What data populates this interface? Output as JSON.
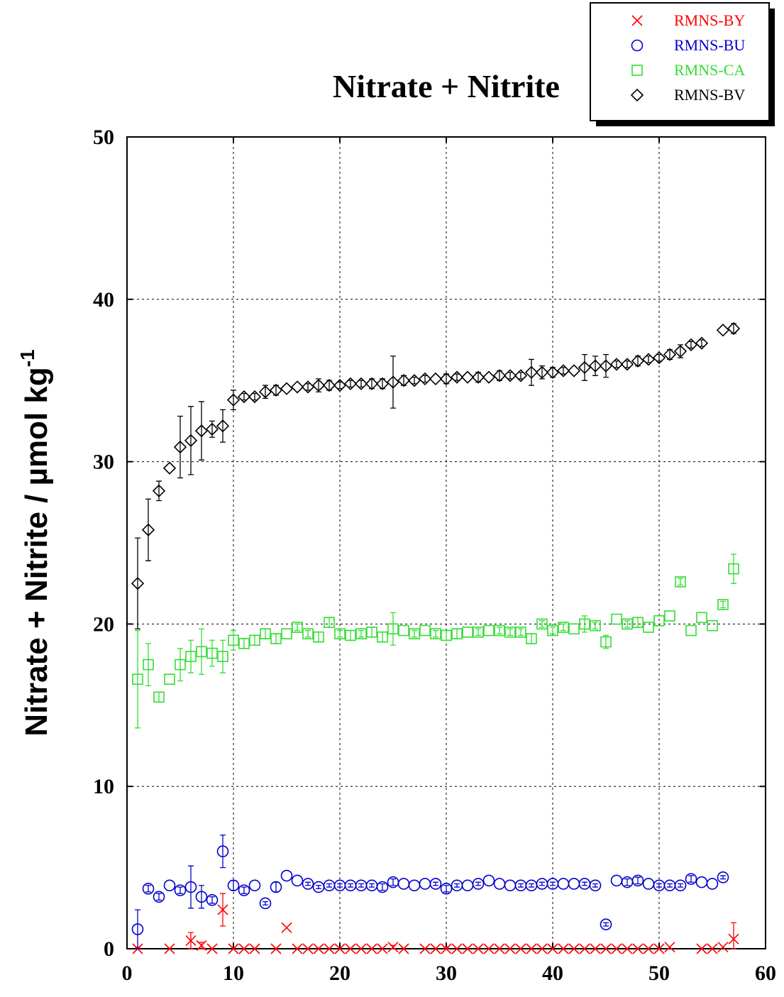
{
  "chart_data": {
    "type": "scatter",
    "title": "Nitrate + Nitrite",
    "xlabel": "",
    "ylabel": "Nitrate + Nitrite / µmol kg",
    "ylabel_superscript": "-1",
    "xlim": [
      0,
      60
    ],
    "ylim": [
      0,
      50
    ],
    "xticks": [
      "0",
      "10",
      "20",
      "30",
      "40",
      "50",
      "60"
    ],
    "yticks": [
      "0",
      "10",
      "20",
      "30",
      "40",
      "50"
    ],
    "grid": true,
    "legend_position": "top-right",
    "series": [
      {
        "name": "RMNS-BY",
        "marker": "cross",
        "color": "#ff0000",
        "points": [
          [
            1,
            0,
            0.1
          ],
          [
            4,
            0,
            0
          ],
          [
            6,
            0.5,
            0.5
          ],
          [
            7,
            0.2,
            0.2
          ],
          [
            8,
            0,
            0
          ],
          [
            9,
            2.4,
            1
          ],
          [
            10,
            0,
            0
          ],
          [
            11,
            0,
            0
          ],
          [
            12,
            0,
            0
          ],
          [
            14,
            0,
            0
          ],
          [
            15,
            1.3,
            0
          ],
          [
            16,
            0,
            0
          ],
          [
            17,
            0,
            0
          ],
          [
            18,
            0,
            0
          ],
          [
            19,
            0,
            0
          ],
          [
            20,
            0,
            0
          ],
          [
            21,
            0,
            0
          ],
          [
            22,
            0,
            0
          ],
          [
            23,
            0,
            0
          ],
          [
            24,
            0,
            0
          ],
          [
            25,
            0.1,
            0.1
          ],
          [
            26,
            0,
            0
          ],
          [
            28,
            0,
            0
          ],
          [
            29,
            0,
            0
          ],
          [
            30,
            0,
            0.1
          ],
          [
            31,
            0,
            0
          ],
          [
            32,
            0,
            0
          ],
          [
            33,
            0,
            0
          ],
          [
            34,
            0,
            0
          ],
          [
            35,
            0,
            0
          ],
          [
            36,
            0,
            0
          ],
          [
            37,
            0,
            0
          ],
          [
            38,
            0,
            0
          ],
          [
            39,
            0,
            0
          ],
          [
            40,
            0,
            0
          ],
          [
            41,
            0,
            0
          ],
          [
            42,
            0,
            0
          ],
          [
            43,
            0,
            0
          ],
          [
            44,
            0,
            0
          ],
          [
            45,
            0,
            0
          ],
          [
            46,
            0,
            0
          ],
          [
            47,
            0,
            0
          ],
          [
            48,
            0,
            0
          ],
          [
            49,
            0,
            0
          ],
          [
            50,
            0,
            0
          ],
          [
            51,
            0.1,
            0
          ],
          [
            54,
            0,
            0
          ],
          [
            55,
            0,
            0
          ],
          [
            56,
            0.1,
            0
          ],
          [
            57,
            0.6,
            1
          ]
        ]
      },
      {
        "name": "RMNS-BU",
        "marker": "circle",
        "color": "#0000cc",
        "points": [
          [
            1,
            1.2,
            1.2
          ],
          [
            2,
            3.7,
            0.2
          ],
          [
            3,
            3.2,
            0.2
          ],
          [
            4,
            3.9,
            0
          ],
          [
            5,
            3.6,
            0.2
          ],
          [
            6,
            3.8,
            1.3
          ],
          [
            7,
            3.2,
            0.7
          ],
          [
            8,
            3,
            0.2
          ],
          [
            9,
            6,
            1
          ],
          [
            10,
            3.9,
            0.3
          ],
          [
            11,
            3.6,
            0.2
          ],
          [
            12,
            3.9,
            0
          ],
          [
            13,
            2.8,
            0.1
          ],
          [
            14,
            3.8,
            0.3
          ],
          [
            15,
            4.5,
            0
          ],
          [
            16,
            4.2,
            0
          ],
          [
            17,
            4,
            0.1
          ],
          [
            18,
            3.8,
            0.1
          ],
          [
            19,
            3.9,
            0.1
          ],
          [
            20,
            3.9,
            0.1
          ],
          [
            21,
            3.9,
            0.1
          ],
          [
            22,
            3.9,
            0.1
          ],
          [
            23,
            3.9,
            0.1
          ],
          [
            24,
            3.8,
            0.2
          ],
          [
            25,
            4.1,
            0.2
          ],
          [
            26,
            4,
            0
          ],
          [
            27,
            3.9,
            0
          ],
          [
            28,
            4,
            0
          ],
          [
            29,
            4,
            0.1
          ],
          [
            30,
            3.7,
            0.2
          ],
          [
            31,
            3.9,
            0.1
          ],
          [
            32,
            3.9,
            0
          ],
          [
            33,
            4,
            0.1
          ],
          [
            34,
            4.2,
            0
          ],
          [
            35,
            4,
            0
          ],
          [
            36,
            3.9,
            0
          ],
          [
            37,
            3.9,
            0.1
          ],
          [
            38,
            3.9,
            0.1
          ],
          [
            39,
            4,
            0.1
          ],
          [
            40,
            4,
            0.1
          ],
          [
            41,
            4,
            0
          ],
          [
            42,
            4,
            0
          ],
          [
            43,
            4,
            0.1
          ],
          [
            44,
            3.9,
            0.1
          ],
          [
            45,
            1.5,
            0.1
          ],
          [
            46,
            4.2,
            0
          ],
          [
            47,
            4.1,
            0.2
          ],
          [
            48,
            4.2,
            0.2
          ],
          [
            49,
            4,
            0
          ],
          [
            50,
            3.9,
            0.1
          ],
          [
            51,
            3.9,
            0.1
          ],
          [
            52,
            3.9,
            0.1
          ],
          [
            53,
            4.3,
            0.2
          ],
          [
            54,
            4.1,
            0
          ],
          [
            55,
            4,
            0
          ],
          [
            56,
            4.4,
            0.1
          ]
        ]
      },
      {
        "name": "RMNS-CA",
        "marker": "square",
        "color": "#33dd33",
        "points": [
          [
            1,
            16.6,
            3
          ],
          [
            2,
            17.5,
            1.3
          ],
          [
            3,
            15.5,
            0.3
          ],
          [
            4,
            16.6,
            0
          ],
          [
            5,
            17.5,
            1
          ],
          [
            6,
            18,
            1
          ],
          [
            7,
            18.3,
            1.4
          ],
          [
            8,
            18.2,
            0.8
          ],
          [
            9,
            18,
            1
          ],
          [
            10,
            19,
            0.6
          ],
          [
            11,
            18.8,
            0.3
          ],
          [
            12,
            19,
            0.3
          ],
          [
            13,
            19.4,
            0.3
          ],
          [
            14,
            19.1,
            0.3
          ],
          [
            15,
            19.4,
            0
          ],
          [
            16,
            19.8,
            0.2
          ],
          [
            17,
            19.4,
            0.2
          ],
          [
            18,
            19.2,
            0.3
          ],
          [
            19,
            20.1,
            0.3
          ],
          [
            20,
            19.4,
            0.2
          ],
          [
            21,
            19.3,
            0.3
          ],
          [
            22,
            19.4,
            0.2
          ],
          [
            23,
            19.5,
            0.3
          ],
          [
            24,
            19.2,
            0.3
          ],
          [
            25,
            19.7,
            1
          ],
          [
            26,
            19.6,
            0
          ],
          [
            27,
            19.4,
            0.2
          ],
          [
            28,
            19.6,
            0
          ],
          [
            29,
            19.4,
            0.2
          ],
          [
            30,
            19.3,
            0.3
          ],
          [
            31,
            19.4,
            0.3
          ],
          [
            32,
            19.5,
            0
          ],
          [
            33,
            19.5,
            0.2
          ],
          [
            34,
            19.6,
            0
          ],
          [
            35,
            19.6,
            0.2
          ],
          [
            36,
            19.5,
            0.2
          ],
          [
            37,
            19.5,
            0.2
          ],
          [
            38,
            19.1,
            0.3
          ],
          [
            39,
            20,
            0.2
          ],
          [
            40,
            19.6,
            0.2
          ],
          [
            41,
            19.8,
            0.2
          ],
          [
            42,
            19.7,
            0
          ],
          [
            43,
            20,
            0.5
          ],
          [
            44,
            19.9,
            0.2
          ],
          [
            45,
            18.9,
            0.4
          ],
          [
            46,
            20.3,
            0
          ],
          [
            47,
            20,
            0.2
          ],
          [
            48,
            20.1,
            0.3
          ],
          [
            49,
            19.8,
            0
          ],
          [
            50,
            20.2,
            0
          ],
          [
            51,
            20.5,
            0
          ],
          [
            52,
            22.6,
            0.2
          ],
          [
            53,
            19.6,
            0
          ],
          [
            54,
            20.4,
            0
          ],
          [
            55,
            19.9,
            0
          ],
          [
            56,
            21.2,
            0.2
          ],
          [
            57,
            23.4,
            0.9
          ]
        ]
      },
      {
        "name": "RMNS-BV",
        "marker": "diamond",
        "color": "#000000",
        "points": [
          [
            1,
            22.5,
            2.8
          ],
          [
            2,
            25.8,
            1.9
          ],
          [
            3,
            28.2,
            0.6
          ],
          [
            4,
            29.6,
            0
          ],
          [
            5,
            30.9,
            1.9
          ],
          [
            6,
            31.3,
            2.1
          ],
          [
            7,
            31.9,
            1.8
          ],
          [
            8,
            32,
            0.5
          ],
          [
            9,
            32.2,
            1
          ],
          [
            10,
            33.8,
            0.6
          ],
          [
            11,
            34,
            0.2
          ],
          [
            12,
            34,
            0.2
          ],
          [
            13,
            34.3,
            0.4
          ],
          [
            14,
            34.4,
            0.3
          ],
          [
            15,
            34.5,
            0
          ],
          [
            16,
            34.6,
            0
          ],
          [
            17,
            34.6,
            0.2
          ],
          [
            18,
            34.7,
            0.4
          ],
          [
            19,
            34.7,
            0.3
          ],
          [
            20,
            34.7,
            0.2
          ],
          [
            21,
            34.8,
            0.2
          ],
          [
            22,
            34.8,
            0.2
          ],
          [
            23,
            34.8,
            0.3
          ],
          [
            24,
            34.8,
            0.3
          ],
          [
            25,
            34.9,
            1.6
          ],
          [
            26,
            35,
            0.3
          ],
          [
            27,
            35,
            0.2
          ],
          [
            28,
            35.1,
            0.2
          ],
          [
            29,
            35.1,
            0
          ],
          [
            30,
            35.1,
            0.3
          ],
          [
            31,
            35.2,
            0.2
          ],
          [
            32,
            35.2,
            0
          ],
          [
            33,
            35.2,
            0.3
          ],
          [
            34,
            35.2,
            0
          ],
          [
            35,
            35.3,
            0.3
          ],
          [
            36,
            35.3,
            0.2
          ],
          [
            37,
            35.3,
            0.2
          ],
          [
            38,
            35.5,
            0.8
          ],
          [
            39,
            35.5,
            0.4
          ],
          [
            40,
            35.5,
            0.3
          ],
          [
            41,
            35.6,
            0.2
          ],
          [
            42,
            35.6,
            0
          ],
          [
            43,
            35.8,
            0.8
          ],
          [
            44,
            35.9,
            0.6
          ],
          [
            45,
            35.9,
            0.7
          ],
          [
            46,
            36,
            0.2
          ],
          [
            47,
            36,
            0.2
          ],
          [
            48,
            36.2,
            0.3
          ],
          [
            49,
            36.3,
            0.2
          ],
          [
            50,
            36.4,
            0.2
          ],
          [
            51,
            36.6,
            0.3
          ],
          [
            52,
            36.8,
            0.4
          ],
          [
            53,
            37.2,
            0.2
          ],
          [
            54,
            37.3,
            0.2
          ],
          [
            56,
            38.1,
            0
          ],
          [
            57,
            38.2,
            0.3
          ]
        ]
      }
    ]
  }
}
